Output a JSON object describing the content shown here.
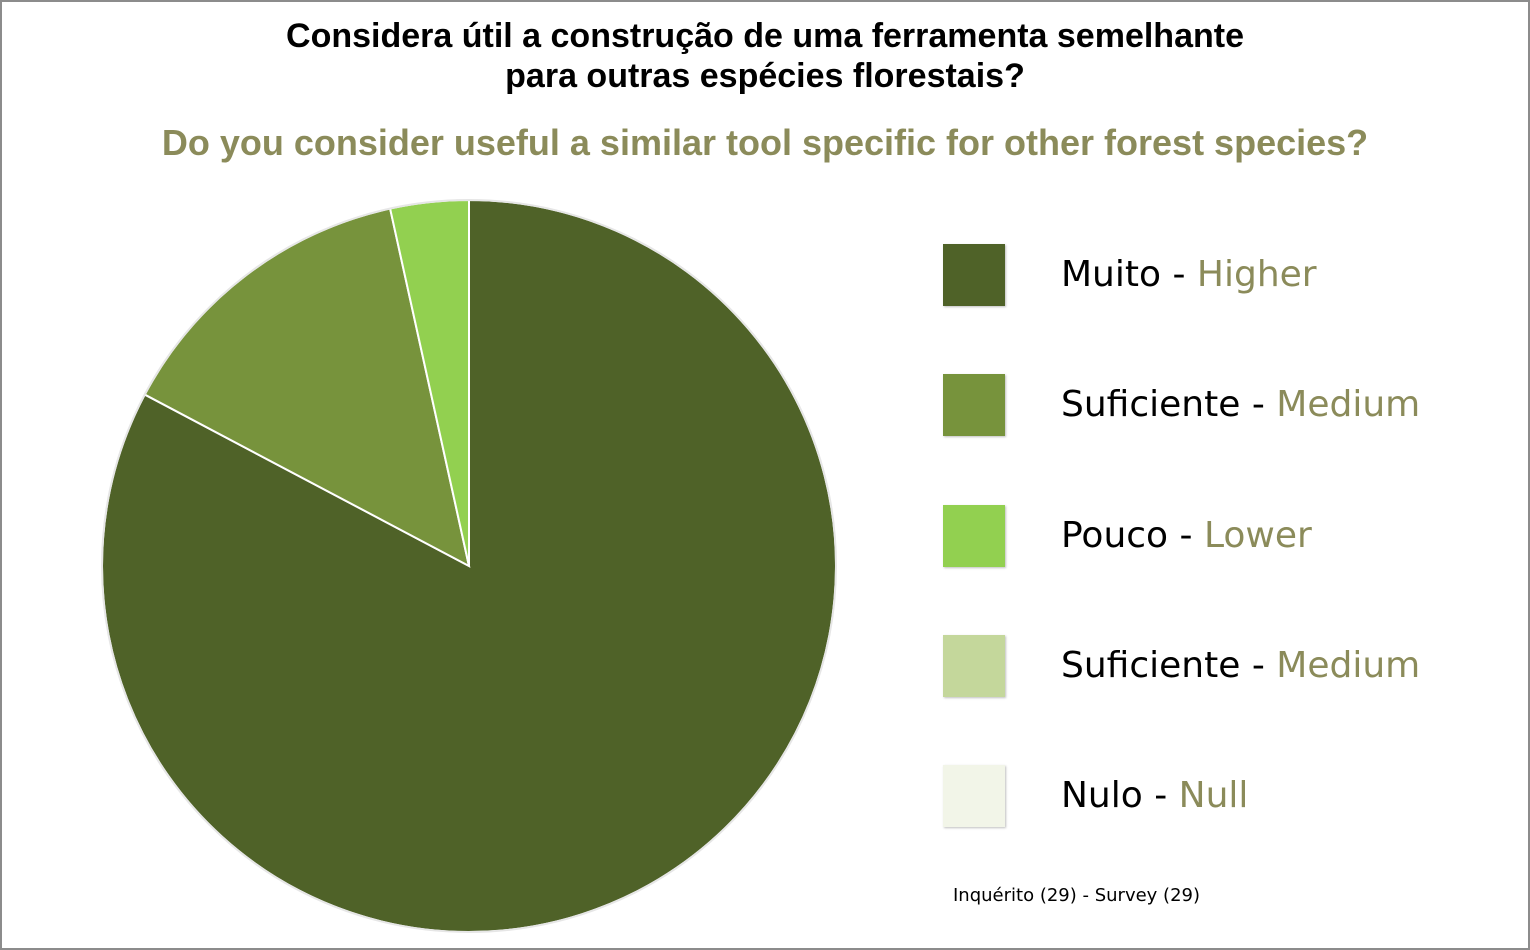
{
  "chart_data": {
    "type": "pie",
    "title": [
      "Considera útil a construção de uma ferramenta semelhante",
      "para outras espécies florestais?"
    ],
    "subtitle": "Do you consider useful a similar tool specific for other forest species?",
    "footnote": "Inquérito (29) -  Survey (29)",
    "legend_position": "right",
    "text_color": "#000000",
    "accent_color": "#8b8b5a",
    "slices": [
      {
        "label_pt": "Muito",
        "separator": " - ",
        "label_en": "Higher",
        "value": 24,
        "color": "#4f6228"
      },
      {
        "label_pt": "Suficiente",
        "separator": " - ",
        "label_en": "Medium",
        "value": 4,
        "color": "#77933c"
      },
      {
        "label_pt": "Pouco",
        "separator": " - ",
        "label_en": "Lower",
        "value": 1,
        "color": "#92d050"
      },
      {
        "label_pt": "Suficiente",
        "separator": " - ",
        "label_en": "Medium",
        "value": 0,
        "color": "#c4d79b"
      },
      {
        "label_pt": "Nulo",
        "separator": " - ",
        "label_en": "Null",
        "value": 0,
        "color": "#f2f5e8"
      }
    ]
  }
}
